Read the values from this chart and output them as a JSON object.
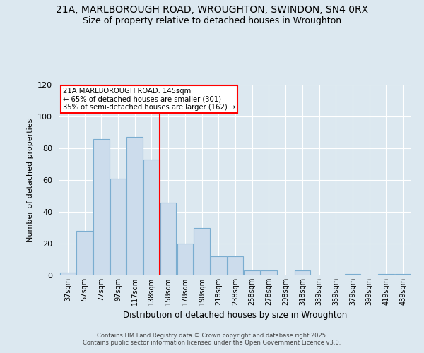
{
  "title_line1": "21A, MARLBOROUGH ROAD, WROUGHTON, SWINDON, SN4 0RX",
  "title_line2": "Size of property relative to detached houses in Wroughton",
  "xlabel": "Distribution of detached houses by size in Wroughton",
  "ylabel": "Number of detached properties",
  "categories": [
    "37sqm",
    "57sqm",
    "77sqm",
    "97sqm",
    "117sqm",
    "138sqm",
    "158sqm",
    "178sqm",
    "198sqm",
    "218sqm",
    "238sqm",
    "258sqm",
    "278sqm",
    "298sqm",
    "318sqm",
    "339sqm",
    "359sqm",
    "379sqm",
    "399sqm",
    "419sqm",
    "439sqm"
  ],
  "values": [
    2,
    28,
    86,
    61,
    87,
    73,
    46,
    20,
    30,
    12,
    12,
    3,
    3,
    0,
    3,
    0,
    0,
    1,
    0,
    1,
    1
  ],
  "bar_color": "#ccdcec",
  "bar_edge_color": "#7aadd0",
  "red_line_index": 5.5,
  "annotation_text_line1": "21A MARLBOROUGH ROAD: 145sqm",
  "annotation_text_line2": "← 65% of detached houses are smaller (301)",
  "annotation_text_line3": "35% of semi-detached houses are larger (162) →",
  "ylim": [
    0,
    120
  ],
  "yticks": [
    0,
    20,
    40,
    60,
    80,
    100,
    120
  ],
  "footer_line1": "Contains HM Land Registry data © Crown copyright and database right 2025.",
  "footer_line2": "Contains public sector information licensed under the Open Government Licence v3.0.",
  "bg_color": "#dce8f0",
  "title_fontsize": 10,
  "subtitle_fontsize": 9
}
